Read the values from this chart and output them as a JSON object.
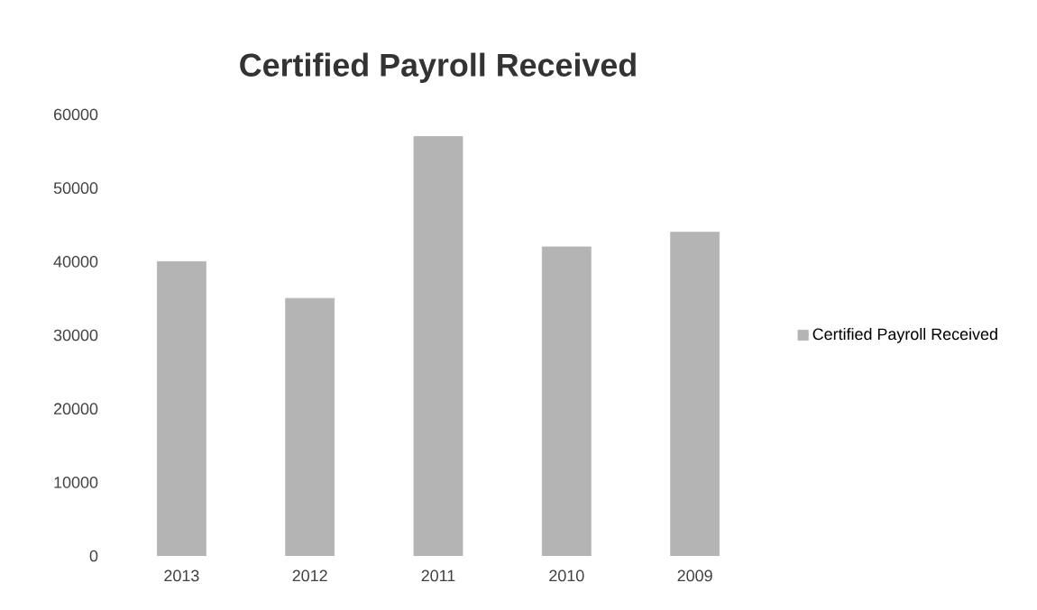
{
  "chart_data": {
    "type": "bar",
    "title": "Certified Payroll Received",
    "categories": [
      "2013",
      "2012",
      "2011",
      "2010",
      "2009"
    ],
    "series": [
      {
        "name": "Certified Payroll Received",
        "color": "#b4b4b4",
        "values": [
          40000,
          35000,
          57000,
          42000,
          44000
        ]
      }
    ],
    "ylim": [
      0,
      60000
    ],
    "yticks": [
      0,
      10000,
      20000,
      30000,
      40000,
      50000,
      60000
    ],
    "legend": "right"
  }
}
